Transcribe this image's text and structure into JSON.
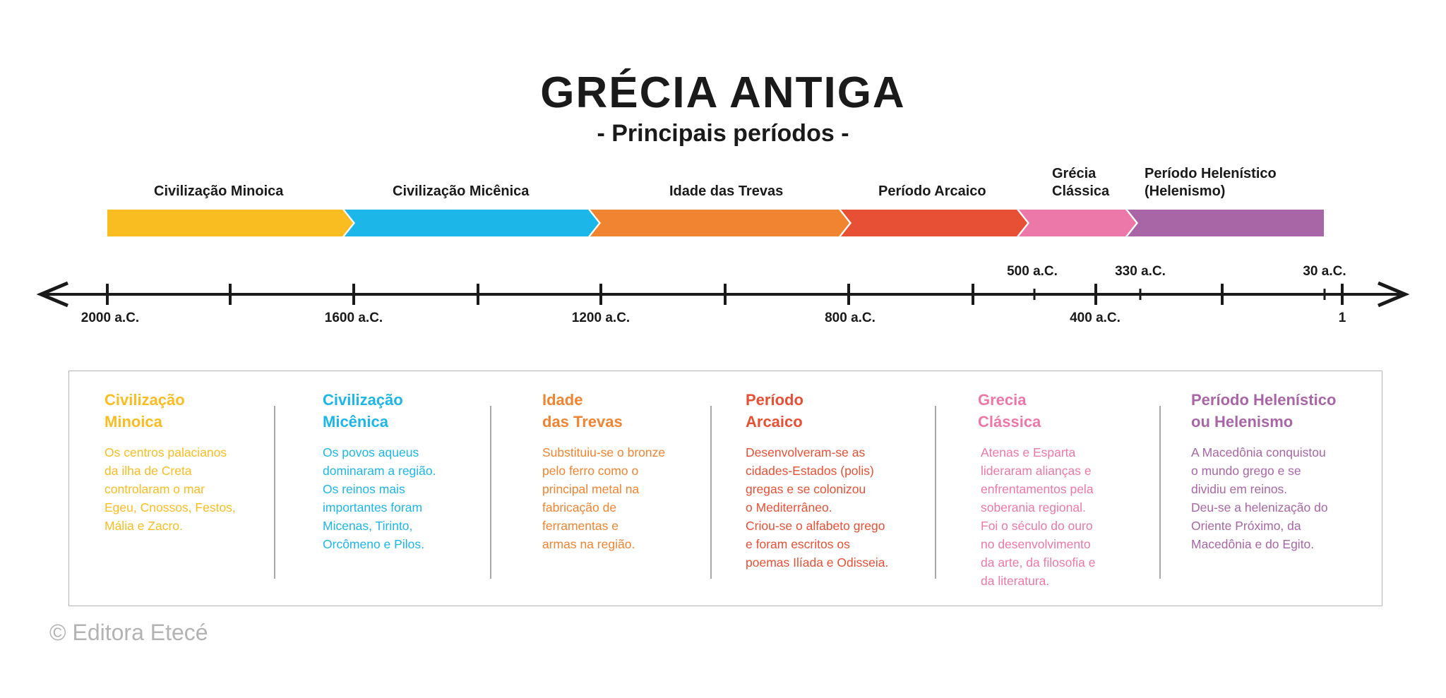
{
  "header": {
    "title": "GRÉCIA ANTIGA",
    "subtitle": "- Principais períodos -"
  },
  "periods": [
    {
      "name": "Civilização Minoica",
      "color": "#F9BD22",
      "start_year": -2000,
      "end_year": -1600
    },
    {
      "name": "Civilização Micênica",
      "color": "#1DB6E8",
      "start_year": -1600,
      "end_year": -1200
    },
    {
      "name": "Idade das Trevas",
      "color": "#F08431",
      "start_year": -1200,
      "end_year": -800
    },
    {
      "name": "Período Arcaico",
      "color": "#E85035",
      "start_year": -800,
      "end_year": -500
    },
    {
      "name": "Grécia\nClássica",
      "color": "#EB78A8",
      "start_year": -500,
      "end_year": -330
    },
    {
      "name": "Período Helenístico\n(Helenismo)",
      "color": "#A866A6",
      "start_year": -330,
      "end_year": -30
    }
  ],
  "axis": {
    "labels_below": [
      "2000 a.C.",
      "1600 a.C.",
      "1200 a.C.",
      "800 a.C.",
      "400 a.C.",
      "1"
    ],
    "labels_above": [
      "500 a.C.",
      "330 a.C.",
      "30 a.C."
    ]
  },
  "cards": [
    {
      "title": "Civilização\nMinoica",
      "body": "Os centros palacianos\nda ilha de Creta\ncontrolaram o mar\nEgeu, Cnossos, Festos,\nMália e Zacro.",
      "color": "#F9BD22"
    },
    {
      "title": "Civilização\nMicênica",
      "body": "Os povos aqueus\ndominaram a região.\nOs reinos mais\nimportantes foram\nMicenas, Tirinto,\nOrcômeno e Pilos.",
      "color": "#1DB6E8"
    },
    {
      "title": "Idade\ndas Trevas",
      "body": "Substituiu-se o bronze\npelo ferro como o\nprincipal metal na\nfabricação de\nferramentas e\narmas na região.",
      "color": "#F08431"
    },
    {
      "title": "Período\nArcaico",
      "body": "Desenvolveram-se as\ncidades-Estados (polis)\ngregas e se colonizou\no Mediterrâneo.\nCriou-se o alfabeto grego\ne foram escritos os\npoemas Ilíada e Odisseia.",
      "color": "#E85035"
    },
    {
      "title": "Grecia\nClássica",
      "body": "Atenas e Esparta\nlideraram alianças e\nenfrentamentos pela\nsoberania regional.\nFoi o século do ouro\nno desenvolvimento\nda arte, da filosofia e\nda literatura.",
      "color": "#EB78A8"
    },
    {
      "title": "Período Helenístico\nou Helenismo",
      "body": "A Macedônia conquistou\no mundo grego e se\ndividiu em reinos.\nDeu-se a helenização do\nOriente Próximo, da\nMacedônia e do Egito.",
      "color": "#A866A6"
    }
  ],
  "footer": {
    "copyright": "© Editora Etecé"
  }
}
